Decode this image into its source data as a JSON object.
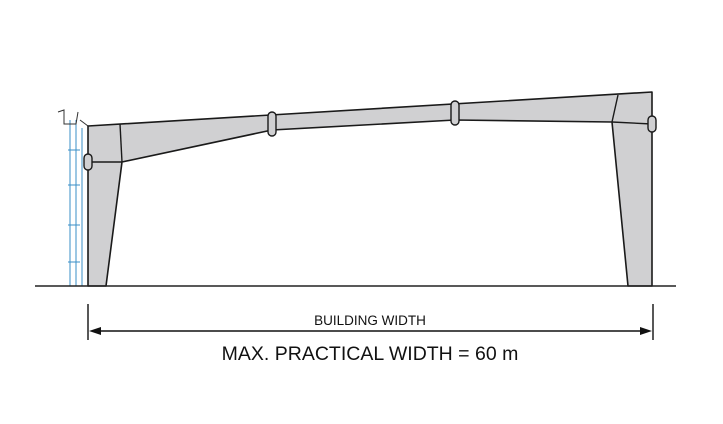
{
  "dimension": {
    "label": "BUILDING WIDTH",
    "caption": "MAX. PRACTICAL WIDTH = 60 m"
  }
}
